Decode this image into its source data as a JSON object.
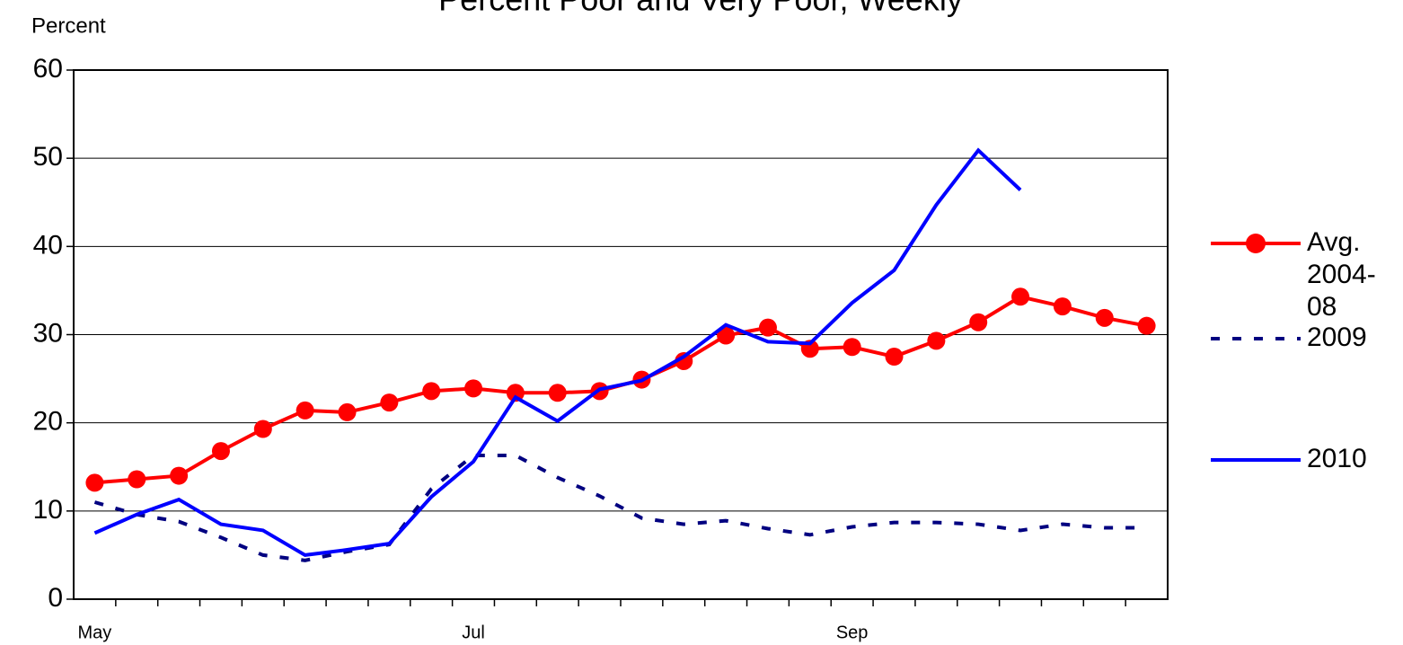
{
  "chart_data": {
    "type": "line",
    "title": "Percent Poor and Very Poor, Weekly",
    "y_label": "Percent",
    "categories": [
      "May",
      null,
      null,
      null,
      null,
      null,
      null,
      null,
      null,
      "Jul",
      null,
      null,
      null,
      null,
      null,
      null,
      null,
      null,
      "Sep",
      null,
      null,
      null,
      null,
      null,
      null,
      null
    ],
    "series": [
      {
        "name": "Avg. 2004-08",
        "color": "#ff0000",
        "line_style": "solid",
        "marker": "circle",
        "values": [
          13.2,
          13.6,
          14.0,
          16.8,
          19.3,
          21.4,
          21.2,
          22.3,
          23.6,
          23.9,
          23.4,
          23.4,
          23.6,
          24.9,
          27.0,
          29.9,
          30.8,
          28.4,
          28.6,
          27.5,
          29.3,
          31.4,
          34.3,
          33.2,
          31.9,
          31.0
        ]
      },
      {
        "name": "2009",
        "color": "#000080",
        "line_style": "dashed",
        "marker": "none",
        "values": [
          11.0,
          9.6,
          8.8,
          7.0,
          5.0,
          4.4,
          5.4,
          6.2,
          12.5,
          16.3,
          16.3,
          13.8,
          11.7,
          9.2,
          8.5,
          8.9,
          8.0,
          7.3,
          8.2,
          8.7,
          8.7,
          8.5,
          7.8,
          8.5,
          8.1,
          8.1
        ]
      },
      {
        "name": "2010",
        "color": "#0000ff",
        "line_style": "solid",
        "marker": "none",
        "values": [
          7.5,
          9.6,
          11.3,
          8.5,
          7.8,
          5.0,
          5.6,
          6.3,
          11.6,
          15.6,
          22.9,
          20.2,
          23.8,
          24.8,
          27.5,
          31.1,
          29.2,
          29.0,
          33.6,
          37.3,
          44.7,
          50.9,
          46.4,
          null,
          null,
          null
        ]
      }
    ],
    "ylim": [
      0,
      60
    ],
    "yticks": [
      0,
      10,
      20,
      30,
      40,
      50,
      60
    ],
    "grid": true,
    "legend": "right"
  }
}
